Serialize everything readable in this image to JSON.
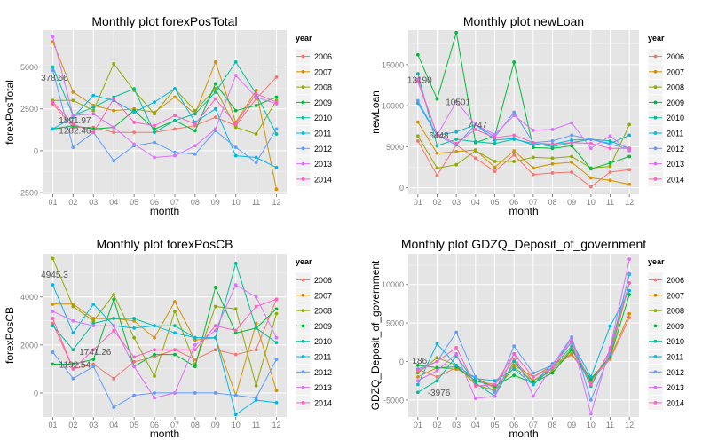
{
  "years": [
    "2006",
    "2007",
    "2008",
    "2009",
    "2010",
    "2011",
    "2012",
    "2013",
    "2014"
  ],
  "colors": [
    "#F8766D",
    "#D39200",
    "#93AA00",
    "#00BA38",
    "#00C19F",
    "#00B9E3",
    "#619CFF",
    "#DB72FB",
    "#FF61C3"
  ],
  "months": [
    "01",
    "02",
    "03",
    "04",
    "05",
    "06",
    "07",
    "08",
    "09",
    "10",
    "11",
    "12"
  ],
  "legend_title": "year",
  "chart_data": [
    {
      "type": "line",
      "title": "Monthly plot forexPosTotal",
      "xlabel": "month",
      "ylabel": "forexPosTotal",
      "ylim": [
        -2600,
        7200
      ],
      "yticks": [
        -2500,
        0,
        2500,
        5000
      ],
      "annotations": [
        {
          "text": "378.66",
          "month": 1,
          "y": 4400
        },
        {
          "text": "1891.97",
          "month": 2,
          "y": 1850
        },
        {
          "text": "1282.46",
          "month": 2,
          "y": 1250
        }
      ],
      "series": [
        {
          "name": "2006",
          "values": [
            2800,
            1400,
            1400,
            1100,
            1100,
            1100,
            1300,
            1500,
            2000,
            1500,
            3100,
            4400
          ]
        },
        {
          "name": "2007",
          "values": [
            6500,
            3500,
            2700,
            2400,
            2500,
            2300,
            3200,
            2200,
            5300,
            1700,
            3600,
            -2300
          ]
        },
        {
          "name": "2008",
          "values": [
            3000,
            3000,
            2400,
            5200,
            3600,
            2200,
            3700,
            2400,
            3700,
            1400,
            1000,
            3000
          ]
        },
        {
          "name": "2009",
          "values": [
            1300,
            1500,
            1300,
            1400,
            2400,
            1300,
            1800,
            1200,
            4000,
            2400,
            2700,
            3200
          ]
        },
        {
          "name": "2010",
          "values": [
            5000,
            2100,
            2600,
            3200,
            3700,
            1100,
            1800,
            2200,
            3500,
            5300,
            3400,
            1000
          ]
        },
        {
          "name": "2011",
          "values": [
            1300,
            2000,
            3300,
            3000,
            2300,
            2900,
            3700,
            1700,
            2500,
            -300,
            -400,
            -1000
          ]
        },
        {
          "name": "2012",
          "values": [
            4800,
            200,
            1100,
            -600,
            300,
            500,
            -100,
            -200,
            1200,
            200,
            -700,
            1300
          ]
        },
        {
          "name": "2013",
          "values": [
            6800,
            2100,
            2200,
            1400,
            400,
            -400,
            -300,
            300,
            1300,
            4500,
            3200,
            2800
          ]
        },
        {
          "name": "2014",
          "values": [
            2900,
            1600,
            1100,
            3100,
            1700,
            1500,
            2100,
            1600,
            3100,
            1600,
            3400,
            2900
          ]
        }
      ]
    },
    {
      "type": "line",
      "title": "Monthly plot newLoan",
      "xlabel": "month",
      "ylabel": "newLoan",
      "ylim": [
        -800,
        19200
      ],
      "yticks": [
        0,
        5000,
        10000,
        15000
      ],
      "annotations": [
        {
          "text": "13190",
          "month": 1,
          "y": 13190
        },
        {
          "text": "10501",
          "month": 3,
          "y": 10501
        },
        {
          "text": "6448",
          "month": 2,
          "y": 6448
        },
        {
          "text": "7747",
          "month": 4,
          "y": 7747
        }
      ],
      "series": [
        {
          "name": "2006",
          "values": [
            5700,
            1500,
            5200,
            3600,
            2000,
            4000,
            1600,
            1800,
            1900,
            100,
            1900,
            2200
          ]
        },
        {
          "name": "2007",
          "values": [
            8000,
            4200,
            4400,
            4600,
            2500,
            4500,
            2400,
            2900,
            3100,
            1200,
            900,
            400
          ]
        },
        {
          "name": "2008",
          "values": [
            6300,
            2400,
            2800,
            4500,
            3200,
            3200,
            3700,
            3600,
            3800,
            2400,
            2600,
            7700
          ]
        },
        {
          "name": "2009",
          "values": [
            16200,
            10800,
            18900,
            5500,
            6300,
            15300,
            4900,
            4800,
            5100,
            2300,
            3000,
            3800
          ]
        },
        {
          "name": "2010",
          "values": [
            13900,
            5100,
            5900,
            5600,
            5400,
            5900,
            5400,
            5000,
            5500,
            5900,
            5700,
            4800
          ]
        },
        {
          "name": "2011",
          "values": [
            10300,
            6400,
            6800,
            7700,
            5800,
            6000,
            5200,
            5300,
            5800,
            5900,
            5400,
            6400
          ]
        },
        {
          "name": "2012",
          "values": [
            10600,
            6400,
            5200,
            7700,
            6200,
            9200,
            5500,
            5700,
            6400,
            5900,
            5300,
            4700
          ]
        },
        {
          "name": "2013",
          "values": [
            13200,
            6400,
            10500,
            7700,
            6500,
            8800,
            7000,
            7100,
            7900,
            4800,
            6300,
            4500
          ]
        },
        {
          "name": "2014",
          "values": [
            12900,
            6500,
            5400,
            7100,
            6100,
            6400,
            5500,
            5300,
            5500,
            5400,
            4800,
            4800
          ]
        }
      ]
    },
    {
      "type": "line",
      "title": "Monthly plot forexPosCB",
      "xlabel": "month",
      "ylabel": "forexPosCB",
      "ylim": [
        -1000,
        5800
      ],
      "yticks": [
        0,
        2000,
        4000
      ],
      "annotations": [
        {
          "text": "4945.3",
          "month": 1,
          "y": 4945
        },
        {
          "text": "1741.26",
          "month": 3,
          "y": 1741
        },
        {
          "text": "1192.54",
          "month": 2,
          "y": 1192
        }
      ],
      "series": [
        {
          "name": "2006",
          "values": [
            2900,
            1000,
            1200,
            600,
            1300,
            1500,
            1800,
            1400,
            1800,
            1600,
            1800,
            3900
          ]
        },
        {
          "name": "2007",
          "values": [
            3700,
            3700,
            3100,
            3100,
            3000,
            2300,
            3800,
            2200,
            2300,
            -100,
            2900,
            100
          ]
        },
        {
          "name": "2008",
          "values": [
            5600,
            3600,
            3000,
            4100,
            2300,
            700,
            3400,
            1200,
            3600,
            3500,
            300,
            3300
          ]
        },
        {
          "name": "2009",
          "values": [
            1200,
            1200,
            1400,
            3900,
            1100,
            1600,
            1600,
            1100,
            4400,
            2500,
            2700,
            3500
          ]
        },
        {
          "name": "2010",
          "values": [
            2800,
            1800,
            2900,
            3100,
            3100,
            2800,
            2800,
            2300,
            2300,
            5400,
            2700,
            2100
          ]
        },
        {
          "name": "2011",
          "values": [
            4500,
            2500,
            3700,
            2800,
            2700,
            2800,
            2500,
            2300,
            2300,
            -900,
            -300,
            -400
          ]
        },
        {
          "name": "2012",
          "values": [
            1700,
            600,
            1100,
            -600,
            -100,
            0,
            0,
            0,
            0,
            -100,
            -200,
            1400
          ]
        },
        {
          "name": "2013",
          "values": [
            3400,
            3000,
            2800,
            2800,
            1100,
            -200,
            0,
            2000,
            2600,
            4500,
            4000,
            2300
          ]
        },
        {
          "name": "2014",
          "values": [
            3100,
            1000,
            1800,
            2600,
            1500,
            1800,
            1800,
            1800,
            2800,
            2600,
            3600,
            3900
          ]
        }
      ]
    },
    {
      "type": "line",
      "title": "Monthly plot GDZQ_Deposit_of_government",
      "xlabel": "month",
      "ylabel": "GDZQ_Deposit_of_government",
      "ylim": [
        -7200,
        14000
      ],
      "yticks": [
        -5000,
        0,
        5000,
        10000
      ],
      "annotations": [
        {
          "text": "186",
          "month": 1,
          "y": 186
        },
        {
          "text": "-3976",
          "month": 2,
          "y": -3976
        }
      ],
      "series": [
        {
          "name": "2006",
          "values": [
            -1000,
            -2000,
            -800,
            -2500,
            -3000,
            200,
            -2500,
            -800,
            900,
            -2500,
            300,
            5700
          ]
        },
        {
          "name": "2007",
          "values": [
            -2000,
            -800,
            -1000,
            -2000,
            -3500,
            -500,
            -2000,
            -500,
            1000,
            -2200,
            500,
            6200
          ]
        },
        {
          "name": "2008",
          "values": [
            -1500,
            500,
            -500,
            -3000,
            -3800,
            -800,
            -2500,
            -1200,
            1700,
            -2500,
            800,
            10200
          ]
        },
        {
          "name": "2009",
          "values": [
            -500,
            -800,
            -700,
            -2500,
            -3200,
            -1800,
            -2800,
            -1500,
            1500,
            -2300,
            600,
            8700
          ]
        },
        {
          "name": "2010",
          "values": [
            -4000,
            -2500,
            700,
            -2800,
            -4500,
            0,
            -3000,
            -800,
            2000,
            -3200,
            1500,
            11300
          ]
        },
        {
          "name": "2011",
          "values": [
            -3000,
            2300,
            -500,
            -2200,
            -2500,
            -1000,
            -3000,
            -300,
            2500,
            -2000,
            4600,
            9200
          ]
        },
        {
          "name": "2012",
          "values": [
            -1000,
            0,
            3800,
            -2000,
            -4000,
            2000,
            -1500,
            -500,
            3200,
            -5000,
            1000,
            11400
          ]
        },
        {
          "name": "2013",
          "values": [
            -2500,
            -1200,
            1000,
            -4800,
            -4500,
            1000,
            -4500,
            -500,
            2900,
            -6800,
            1800,
            13300
          ]
        },
        {
          "name": "2014",
          "values": [
            -1200,
            0,
            1800,
            -3200,
            -3000,
            1000,
            -2000,
            -800,
            2600,
            -3000,
            1500,
            10200
          ]
        }
      ]
    }
  ]
}
